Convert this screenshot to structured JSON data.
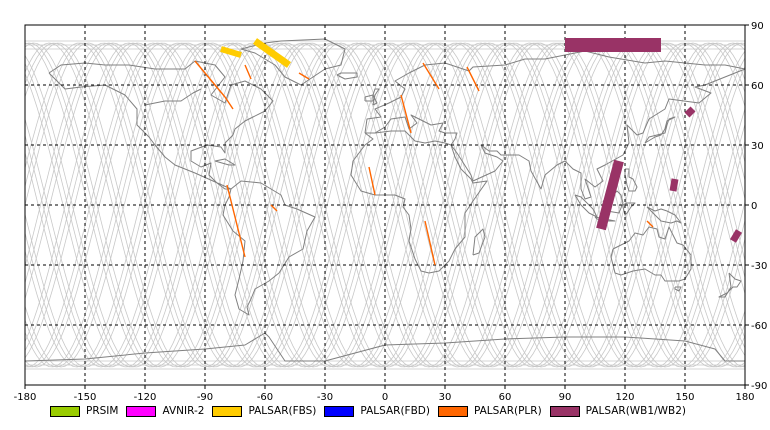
{
  "map": {
    "lon_range": [
      -180,
      180
    ],
    "lat_range": [
      -90,
      90
    ],
    "x_ticks": [
      "-180",
      "-150",
      "-120",
      "-90",
      "-60",
      "-30",
      "0",
      "30",
      "60",
      "90",
      "120",
      "150",
      "180"
    ],
    "y_ticks": [
      "90",
      "60",
      "30",
      "0",
      "-30",
      "-60",
      "-90"
    ],
    "grid": "dashed",
    "coastline_color": "#808080",
    "orbit_track_color": "#c8c8c8"
  },
  "legend": [
    {
      "label": "PRSIM",
      "color": "#99cc00"
    },
    {
      "label": "AVNIR-2",
      "color": "#ff00ff"
    },
    {
      "label": "PALSAR(FBS)",
      "color": "#ffcc00"
    },
    {
      "label": "PALSAR(FBD)",
      "color": "#0000ff"
    },
    {
      "label": "PALSAR(PLR)",
      "color": "#ff6600"
    },
    {
      "label": "PALSAR(WB1/WB2)",
      "color": "#993366"
    }
  ],
  "coverage": {
    "PALSAR(FBS)": [
      {
        "from": [
          -65,
          82
        ],
        "to": [
          -48,
          70
        ],
        "width_deg": 3.5
      },
      {
        "from": [
          -82,
          78
        ],
        "to": [
          -72,
          75
        ],
        "width_deg": 3
      }
    ],
    "PALSAR(PLR)": [
      {
        "from": [
          -95,
          72
        ],
        "to": [
          -80,
          54
        ],
        "width_deg": 0.7
      },
      {
        "from": [
          -70,
          70
        ],
        "to": [
          -67,
          63
        ],
        "width_deg": 0.7
      },
      {
        "from": [
          -80,
          54
        ],
        "to": [
          -76,
          48
        ],
        "width_deg": 0.7
      },
      {
        "from": [
          -43,
          66
        ],
        "to": [
          -38,
          63
        ],
        "width_deg": 0.7
      },
      {
        "from": [
          -79,
          10
        ],
        "to": [
          -70,
          -26
        ],
        "width_deg": 0.7
      },
      {
        "from": [
          -57,
          0
        ],
        "to": [
          -54,
          -3
        ],
        "width_deg": 0.7
      },
      {
        "from": [
          -8,
          19
        ],
        "to": [
          -5,
          5
        ],
        "width_deg": 0.7
      },
      {
        "from": [
          8,
          55
        ],
        "to": [
          13,
          36
        ],
        "width_deg": 0.7
      },
      {
        "from": [
          19,
          71
        ],
        "to": [
          27,
          58
        ],
        "width_deg": 0.7
      },
      {
        "from": [
          41,
          69
        ],
        "to": [
          47,
          57
        ],
        "width_deg": 0.7
      },
      {
        "from": [
          20,
          -8
        ],
        "to": [
          25,
          -30
        ],
        "width_deg": 0.7
      },
      {
        "from": [
          131,
          -8
        ],
        "to": [
          134,
          -11
        ],
        "width_deg": 0.7
      }
    ],
    "PALSAR(WB1/WB2)": [
      {
        "from": [
          90,
          80
        ],
        "to": [
          138,
          80
        ],
        "width_deg": 7
      },
      {
        "from": [
          117,
          22
        ],
        "to": [
          108,
          -12
        ],
        "width_deg": 5
      },
      {
        "from": [
          145,
          13
        ],
        "to": [
          144,
          7
        ],
        "width_deg": 3.5
      },
      {
        "from": [
          154,
          48
        ],
        "to": [
          151,
          45
        ],
        "width_deg": 3.5
      },
      {
        "from": [
          177,
          -13
        ],
        "to": [
          174,
          -18
        ],
        "width_deg": 3.5
      }
    ]
  }
}
